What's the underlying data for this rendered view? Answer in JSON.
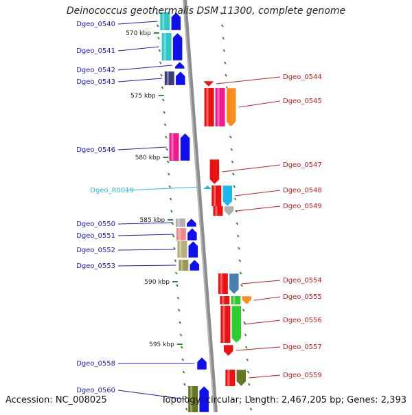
{
  "title": "Deinococcus geothermalis DSM 11300, complete genome",
  "accession_text": "Accession: NC_008025",
  "topology_text": "Topology: circular; Length: 2,467,205 bp; Genes: 2,393",
  "colors": {
    "backbone": "#8c8c8c",
    "tick": "#2e8b2e",
    "label_left": "#1a1acc",
    "label_right": "#cc1a1a",
    "label_rna": "#2bb8e8"
  },
  "scale_labels": [
    "570 kbp",
    "575 kbp",
    "580 kbp",
    "585 kbp",
    "590 kbp",
    "595 kbp"
  ],
  "genes_left": [
    {
      "label": "Dgeo_0540",
      "colors": [
        "#2fc6c6",
        "#1010ee"
      ]
    },
    {
      "label": "Dgeo_0541",
      "colors": [
        "#2fc6c6",
        "#1010ee"
      ]
    },
    {
      "label": "Dgeo_0542",
      "colors": [
        "#1010ee"
      ]
    },
    {
      "label": "Dgeo_0543",
      "colors": [
        "#3b3b7a",
        "#1010ee"
      ]
    },
    {
      "label": "Dgeo_0546",
      "colors": [
        "#ee1a8e",
        "#1010ee"
      ]
    },
    {
      "label": "Dgeo_R0019",
      "colors": [
        "#2bb8e8"
      ],
      "rna": true
    },
    {
      "label": "Dgeo_0550",
      "colors": [
        "#b0b0b0",
        "#1010ee"
      ]
    },
    {
      "label": "Dgeo_0551",
      "colors": [
        "#ee8a8a",
        "#1010ee"
      ]
    },
    {
      "label": "Dgeo_0552",
      "colors": [
        "#b8b07a",
        "#1010ee"
      ]
    },
    {
      "label": "Dgeo_0553",
      "colors": [
        "#9a9a55",
        "#1010ee"
      ]
    },
    {
      "label": "Dgeo_0558",
      "colors": [
        "#1010ee"
      ]
    },
    {
      "label": "Dgeo_0560",
      "colors": [
        "#667722",
        "#1010ee"
      ]
    }
  ],
  "genes_right": [
    {
      "label": "Dgeo_0544",
      "colors": [
        "#ee1111"
      ]
    },
    {
      "label": "Dgeo_0545",
      "colors": [
        "#ee1111",
        "#ee1a8e",
        "#ff8c1a"
      ]
    },
    {
      "label": "Dgeo_0547",
      "colors": [
        "#ee1111"
      ]
    },
    {
      "label": "Dgeo_0548",
      "colors": [
        "#ee1111",
        "#1ab8ee"
      ]
    },
    {
      "label": "Dgeo_0549",
      "colors": [
        "#ee1111",
        "#b0b0b0"
      ]
    },
    {
      "label": "Dgeo_0554",
      "colors": [
        "#ee1111",
        "#4a7fb0"
      ]
    },
    {
      "label": "Dgeo_0555",
      "colors": [
        "#ee1111",
        "#2ecc2e",
        "#ff8c1a"
      ]
    },
    {
      "label": "Dgeo_0556",
      "colors": [
        "#ee1111",
        "#2ecc2e"
      ]
    },
    {
      "label": "Dgeo_0557",
      "colors": [
        "#ee1111"
      ]
    },
    {
      "label": "Dgeo_0559",
      "colors": [
        "#ee1111",
        "#667722"
      ]
    }
  ]
}
